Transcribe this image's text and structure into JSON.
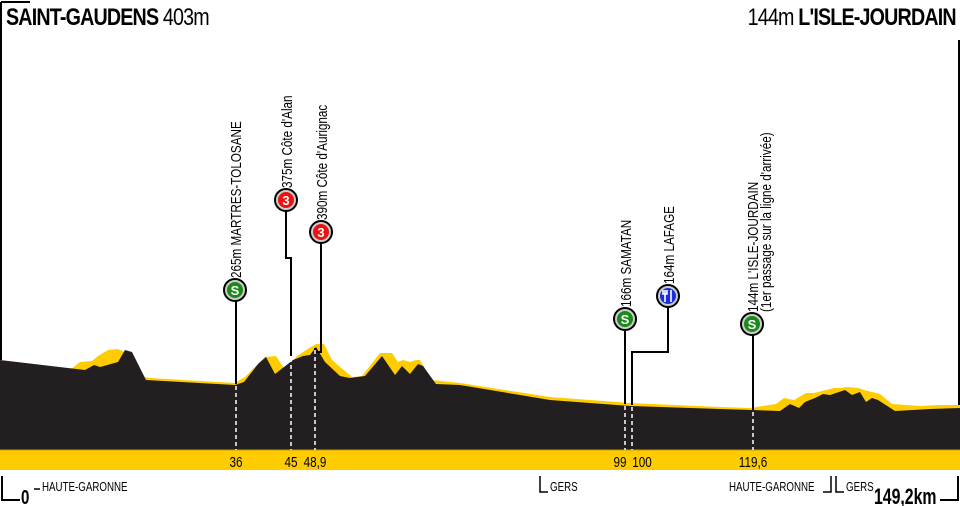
{
  "start": {
    "town": "SAINT-GAUDENS",
    "altitude": "403m"
  },
  "finish": {
    "town": "L'ISLE-JOURDAIN",
    "altitude": "144m"
  },
  "colors": {
    "profile": "#231f20",
    "highlight": "#ffcc00",
    "sprint": "#1a8a1a",
    "climb": "#ee1111",
    "feed": "#1a2ee0"
  },
  "markers": [
    {
      "km": 36,
      "km_label": "36",
      "label": "265m MARTRES-TOLOSANE",
      "label2": "",
      "type": "sprint",
      "icon_text": "S"
    },
    {
      "km": 45,
      "km_label": "45",
      "label": "375m Côte d'Alan",
      "label2": "",
      "type": "climb",
      "icon_text": "3"
    },
    {
      "km": 48.9,
      "km_label": "48,9",
      "label": "390m Côte d'Aurignac",
      "label2": "",
      "type": "climb",
      "icon_text": "3"
    },
    {
      "km": 99,
      "km_label": "99",
      "label": "166m SAMATAN",
      "label2": "",
      "type": "sprint",
      "icon_text": "S"
    },
    {
      "km": 100,
      "km_label": "100",
      "label": "164m LAFAGE",
      "label2": "",
      "type": "feed",
      "icon_text": ""
    },
    {
      "km": 119.6,
      "km_label": "119,6",
      "label": "144m L'ISLE-JOURDAIN",
      "label2": "(1er passage sur la ligne d'arrivée)",
      "type": "sprint",
      "icon_text": "S"
    }
  ],
  "axis": {
    "start_km": "0",
    "end_km": "149,2km"
  },
  "departments": [
    {
      "name": "HAUTE-GARONNE"
    },
    {
      "name": "GERS"
    },
    {
      "name": "HAUTE-GARONNE"
    },
    {
      "name": "GERS"
    }
  ]
}
